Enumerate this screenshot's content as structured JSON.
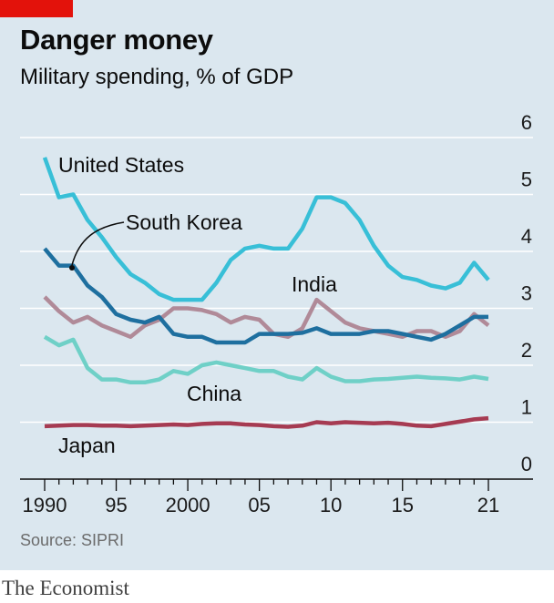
{
  "header": {
    "title": "Danger money",
    "subtitle": "Military spending, % of GDP"
  },
  "footer": {
    "source": "Source: SIPRI",
    "brand": "The Economist"
  },
  "colors": {
    "accent_tag": "#e3120b",
    "background": "#dbe7ef",
    "grid": "#ffffff"
  },
  "chart_data": {
    "type": "line",
    "x": [
      1990,
      1991,
      1992,
      1993,
      1994,
      1995,
      1996,
      1997,
      1998,
      1999,
      2000,
      2001,
      2002,
      2003,
      2004,
      2005,
      2006,
      2007,
      2008,
      2009,
      2010,
      2011,
      2012,
      2013,
      2014,
      2015,
      2016,
      2017,
      2018,
      2019,
      2020,
      2021
    ],
    "xlim": [
      1990,
      2021
    ],
    "ylim": [
      0,
      6
    ],
    "x_ticks": [
      {
        "value": 1990,
        "label": "1990"
      },
      {
        "value": 1995,
        "label": "95"
      },
      {
        "value": 2000,
        "label": "2000"
      },
      {
        "value": 2005,
        "label": "05"
      },
      {
        "value": 2010,
        "label": "10"
      },
      {
        "value": 2015,
        "label": "15"
      },
      {
        "value": 2021,
        "label": "21"
      }
    ],
    "y_ticks": [
      0,
      1,
      2,
      3,
      4,
      5,
      6
    ],
    "grid": "horizontal",
    "series": [
      {
        "name": "India",
        "color": "#b08a98",
        "values": [
          3.2,
          2.95,
          2.75,
          2.85,
          2.7,
          2.6,
          2.5,
          2.7,
          2.8,
          3.0,
          3.0,
          2.97,
          2.9,
          2.75,
          2.85,
          2.8,
          2.55,
          2.5,
          2.65,
          3.15,
          2.95,
          2.75,
          2.65,
          2.6,
          2.55,
          2.5,
          2.6,
          2.6,
          2.5,
          2.6,
          2.9,
          2.7
        ]
      },
      {
        "name": "China",
        "color": "#6fd0c7",
        "values": [
          2.5,
          2.35,
          2.45,
          1.95,
          1.75,
          1.75,
          1.7,
          1.7,
          1.75,
          1.9,
          1.85,
          2.0,
          2.05,
          2.0,
          1.95,
          1.9,
          1.9,
          1.8,
          1.75,
          1.95,
          1.8,
          1.72,
          1.72,
          1.75,
          1.76,
          1.78,
          1.8,
          1.78,
          1.77,
          1.75,
          1.8,
          1.76
        ]
      },
      {
        "name": "Japan",
        "color": "#a63b52",
        "values": [
          0.93,
          0.94,
          0.95,
          0.95,
          0.94,
          0.94,
          0.93,
          0.94,
          0.95,
          0.96,
          0.95,
          0.97,
          0.98,
          0.98,
          0.96,
          0.95,
          0.93,
          0.92,
          0.94,
          1.0,
          0.98,
          1.0,
          0.99,
          0.98,
          0.99,
          0.97,
          0.94,
          0.93,
          0.97,
          1.01,
          1.05,
          1.07
        ]
      },
      {
        "name": "South Korea",
        "color": "#1e6f9f",
        "values": [
          4.05,
          3.75,
          3.75,
          3.4,
          3.2,
          2.9,
          2.8,
          2.75,
          2.85,
          2.55,
          2.5,
          2.5,
          2.4,
          2.4,
          2.4,
          2.55,
          2.55,
          2.55,
          2.57,
          2.65,
          2.55,
          2.55,
          2.55,
          2.6,
          2.6,
          2.55,
          2.5,
          2.45,
          2.55,
          2.7,
          2.85,
          2.85
        ]
      },
      {
        "name": "United States",
        "color": "#38bfd7",
        "values": [
          5.65,
          4.95,
          5.0,
          4.55,
          4.25,
          3.9,
          3.6,
          3.45,
          3.25,
          3.15,
          3.15,
          3.15,
          3.45,
          3.85,
          4.05,
          4.1,
          4.05,
          4.05,
          4.4,
          4.95,
          4.95,
          4.85,
          4.55,
          4.1,
          3.75,
          3.55,
          3.5,
          3.4,
          3.35,
          3.45,
          3.8,
          3.5
        ]
      }
    ],
    "labels": {
      "united_states": "United States",
      "south_korea": "South Korea",
      "india": "India",
      "china": "China",
      "japan": "Japan"
    }
  }
}
